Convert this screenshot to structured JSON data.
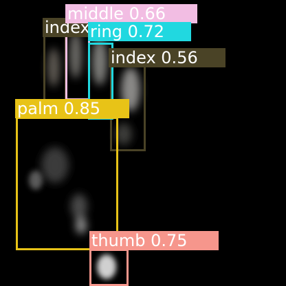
{
  "detections": [
    {
      "label": "index 0.56",
      "box_color": "#4a4326",
      "label_bg": "#4a4326",
      "label_color": "#ffffff"
    },
    {
      "label": "index",
      "box_color": "#4a4326",
      "label_bg": "#4a4326",
      "label_color": "#ffffff"
    },
    {
      "label": "middle 0.66",
      "box_color": "#f2bde3",
      "label_bg": "#f2bde3",
      "label_color": "#ffffff"
    },
    {
      "label": "ring 0.72",
      "box_color": "#21d8e0",
      "label_bg": "#21d8e0",
      "label_color": "#ffffff"
    },
    {
      "label": "palm 0.85",
      "box_color": "#e8c317",
      "label_bg": "#e8c317",
      "label_color": "#ffffff"
    },
    {
      "label": "thumb 0.75",
      "box_color": "#f6968c",
      "label_bg": "#f6968c",
      "label_color": "#ffffff"
    }
  ]
}
